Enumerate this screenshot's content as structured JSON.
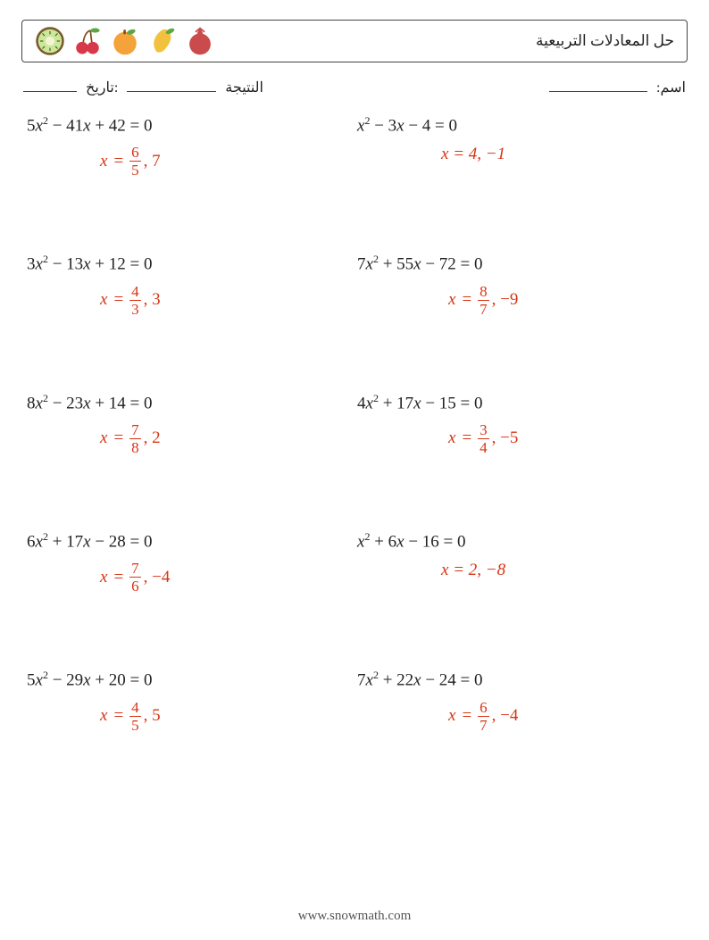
{
  "header": {
    "title": "حل المعادلات التربيعية"
  },
  "info": {
    "name_label": "اسم:",
    "date_label": ":تاريخ",
    "score_label": "النتيجة",
    "blank_width_name": 110,
    "blank_width_score": 100,
    "blank_width_date": 60
  },
  "colors": {
    "answer": "#d73415",
    "text": "#222222",
    "border": "#444444"
  },
  "footer": "www.snowmath.com",
  "problems": [
    {
      "left": {
        "equation_parts": {
          "a": "5",
          "b": " − 41",
          "c": " + 42"
        },
        "answer": {
          "type": "frac",
          "num": "6",
          "den": "5",
          "tail": ", 7"
        }
      },
      "right": {
        "equation_parts": {
          "a": "",
          "b": " − 3",
          "c": " − 4"
        },
        "answer": {
          "type": "simple",
          "text": "x = 4, −1"
        }
      }
    },
    {
      "left": {
        "equation_parts": {
          "a": "3",
          "b": " − 13",
          "c": " + 12"
        },
        "answer": {
          "type": "frac",
          "num": "4",
          "den": "3",
          "tail": ", 3"
        }
      },
      "right": {
        "equation_parts": {
          "a": "7",
          "b": " + 55",
          "c": " − 72"
        },
        "answer": {
          "type": "frac",
          "num": "8",
          "den": "7",
          "tail": ", −9"
        }
      }
    },
    {
      "left": {
        "equation_parts": {
          "a": "8",
          "b": " − 23",
          "c": " + 14"
        },
        "answer": {
          "type": "frac",
          "num": "7",
          "den": "8",
          "tail": ", 2"
        }
      },
      "right": {
        "equation_parts": {
          "a": "4",
          "b": " + 17",
          "c": " − 15"
        },
        "answer": {
          "type": "frac",
          "num": "3",
          "den": "4",
          "tail": ", −5"
        }
      }
    },
    {
      "left": {
        "equation_parts": {
          "a": "6",
          "b": " + 17",
          "c": " − 28"
        },
        "answer": {
          "type": "frac",
          "num": "7",
          "den": "6",
          "tail": ", −4"
        }
      },
      "right": {
        "equation_parts": {
          "a": "",
          "b": " + 6",
          "c": " − 16"
        },
        "answer": {
          "type": "simple",
          "text": "x = 2, −8"
        }
      }
    },
    {
      "left": {
        "equation_parts": {
          "a": "5",
          "b": " − 29",
          "c": " + 20"
        },
        "answer": {
          "type": "frac",
          "num": "4",
          "den": "5",
          "tail": ", 5"
        }
      },
      "right": {
        "equation_parts": {
          "a": "7",
          "b": " + 22",
          "c": " − 24"
        },
        "answer": {
          "type": "frac",
          "num": "6",
          "den": "7",
          "tail": ", −4"
        }
      }
    }
  ]
}
